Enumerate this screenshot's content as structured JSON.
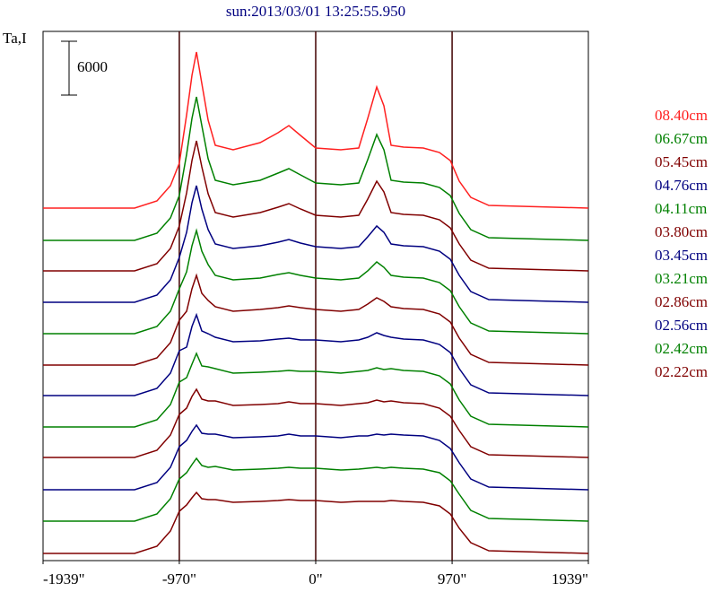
{
  "chart_data": {
    "type": "line",
    "title": "sun:2013/03/01 13:25:55.950",
    "y_label": "Ta,I",
    "scale_bar": 6000,
    "xlim": [
      -1939,
      1939
    ],
    "xticks": [
      {
        "value": -1939,
        "label": "-1939\""
      },
      {
        "value": -970,
        "label": "-970\""
      },
      {
        "value": 0,
        "label": "0\""
      },
      {
        "value": 970,
        "label": "970\""
      },
      {
        "value": 1939,
        "label": "1939\""
      }
    ],
    "vlines": [
      -970,
      0,
      970
    ],
    "ylim": [
      0,
      59000
    ],
    "x": [
      -1939,
      -1288,
      -1129,
      -1033,
      -970,
      -918,
      -880,
      -848,
      -810,
      -765,
      -714,
      -587,
      -395,
      -268,
      -191,
      -108,
      0,
      179,
      306,
      370,
      434,
      485,
      536,
      625,
      765,
      880,
      957,
      1021,
      1103,
      1231,
      1939
    ],
    "series": [
      {
        "name": "08.40cm",
        "color": "#ff2020",
        "values": [
          39300,
          39300,
          40100,
          41800,
          44300,
          49700,
          54100,
          56700,
          53200,
          49100,
          46300,
          45800,
          46600,
          47700,
          48500,
          47400,
          46000,
          45800,
          46000,
          49300,
          52800,
          50700,
          46300,
          46100,
          46000,
          45500,
          44600,
          42300,
          40500,
          39600,
          39300
        ]
      },
      {
        "name": "06.67cm",
        "color": "#008000",
        "values": [
          35700,
          35700,
          36500,
          38200,
          40700,
          45300,
          49300,
          51700,
          48500,
          44800,
          42400,
          41900,
          42400,
          43200,
          43700,
          43000,
          42100,
          41900,
          42100,
          44700,
          47500,
          45800,
          42400,
          42200,
          42100,
          41600,
          40700,
          38700,
          36900,
          36000,
          35700
        ]
      },
      {
        "name": "05.45cm",
        "color": "#800000",
        "values": [
          32300,
          32300,
          33100,
          34800,
          37300,
          41000,
          44600,
          46800,
          43900,
          40900,
          38800,
          38300,
          38800,
          39400,
          39800,
          39200,
          38500,
          38300,
          38500,
          40300,
          42300,
          41100,
          38800,
          38600,
          38500,
          38000,
          37100,
          35300,
          33500,
          32600,
          32300
        ]
      },
      {
        "name": "04.76cm",
        "color": "#000080",
        "values": [
          28800,
          28800,
          29600,
          31300,
          33800,
          36600,
          39900,
          41800,
          39200,
          36900,
          35300,
          34800,
          35100,
          35500,
          35800,
          35400,
          35000,
          34800,
          35000,
          36100,
          37300,
          36600,
          35300,
          35100,
          35000,
          34500,
          33600,
          31800,
          30000,
          29100,
          28800
        ]
      },
      {
        "name": "04.11cm",
        "color": "#008000",
        "values": [
          25300,
          25300,
          26100,
          27800,
          30300,
          32200,
          35100,
          36800,
          34500,
          33000,
          31800,
          31300,
          31500,
          31900,
          32100,
          31800,
          31500,
          31300,
          31500,
          32300,
          33300,
          32700,
          31800,
          31600,
          31500,
          31000,
          30100,
          28300,
          26500,
          25600,
          25300
        ]
      },
      {
        "name": "03.80cm",
        "color": "#800000",
        "values": [
          21800,
          21800,
          22600,
          24300,
          26800,
          27800,
          30300,
          31800,
          29800,
          29000,
          28300,
          27800,
          28000,
          28200,
          28400,
          28200,
          28000,
          27800,
          28000,
          28600,
          29300,
          28900,
          28300,
          28100,
          28000,
          27500,
          26600,
          24800,
          23000,
          22100,
          21800
        ]
      },
      {
        "name": "03.45cm",
        "color": "#000080",
        "values": [
          18400,
          18400,
          19200,
          20900,
          23400,
          23800,
          26100,
          27400,
          25600,
          25300,
          24900,
          24400,
          24500,
          24700,
          24800,
          24600,
          24600,
          24400,
          24600,
          24900,
          25400,
          25100,
          24900,
          24700,
          24600,
          24100,
          23200,
          21400,
          19600,
          18700,
          18400
        ]
      },
      {
        "name": "03.21cm",
        "color": "#008000",
        "values": [
          14900,
          14900,
          15700,
          17400,
          19900,
          20400,
          21900,
          23100,
          21700,
          21600,
          21400,
          20900,
          21000,
          21100,
          21200,
          21100,
          21100,
          20900,
          21100,
          21200,
          21500,
          21300,
          21400,
          21200,
          21100,
          20600,
          19700,
          17900,
          16100,
          15200,
          14900
        ]
      },
      {
        "name": "02.86cm",
        "color": "#800000",
        "values": [
          11500,
          11500,
          12300,
          14000,
          16300,
          17000,
          18300,
          19100,
          18000,
          17800,
          17800,
          17300,
          17400,
          17500,
          17700,
          17500,
          17500,
          17300,
          17500,
          17600,
          17900,
          17700,
          17800,
          17600,
          17500,
          17000,
          16100,
          14500,
          12700,
          11800,
          11500
        ]
      },
      {
        "name": "02.56cm",
        "color": "#000080",
        "values": [
          7900,
          7900,
          8700,
          10400,
          12700,
          13400,
          14400,
          15100,
          14200,
          14100,
          14100,
          13700,
          13800,
          13900,
          14100,
          13900,
          13900,
          13700,
          13900,
          13900,
          14100,
          14000,
          14100,
          14000,
          13900,
          13400,
          12500,
          10900,
          9100,
          8200,
          7900
        ]
      },
      {
        "name": "02.42cm",
        "color": "#008000",
        "values": [
          4400,
          4400,
          5200,
          6900,
          9100,
          9800,
          10700,
          11400,
          10600,
          10400,
          10500,
          10100,
          10200,
          10300,
          10400,
          10300,
          10300,
          10100,
          10200,
          10300,
          10400,
          10300,
          10400,
          10300,
          10200,
          9800,
          8900,
          7400,
          5600,
          4700,
          4400
        ]
      },
      {
        "name": "02.22cm",
        "color": "#800000",
        "values": [
          800,
          800,
          1600,
          3300,
          5500,
          6200,
          7000,
          7600,
          6900,
          6800,
          6800,
          6500,
          6600,
          6700,
          6800,
          6700,
          6700,
          6500,
          6600,
          6600,
          6600,
          6600,
          6700,
          6600,
          6500,
          6100,
          5200,
          3600,
          2000,
          1100,
          800
        ]
      }
    ]
  }
}
